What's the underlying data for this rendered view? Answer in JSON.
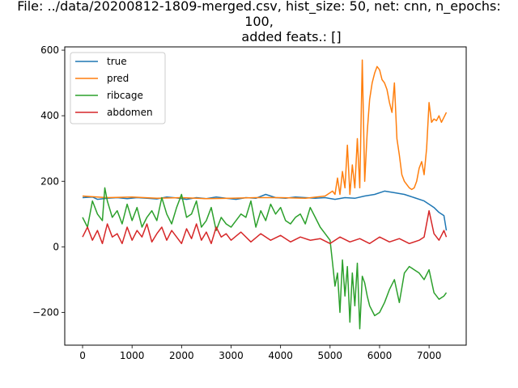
{
  "chart_data": {
    "type": "line",
    "title_lines": [
      "File: ../data/20200812-1809-merged.csv, hist_size: 50, net: cnn, n_epochs:",
      "100,",
      "added feats.: []"
    ],
    "xlabel": "",
    "ylabel": "",
    "xlim": [
      -360,
      7750
    ],
    "ylim": [
      -300,
      610
    ],
    "xticks": [
      0,
      1000,
      2000,
      3000,
      4000,
      5000,
      6000,
      7000
    ],
    "yticks": [
      -200,
      0,
      200,
      400,
      600
    ],
    "ytick_labels": [
      "−200",
      "0",
      "200",
      "400",
      "600"
    ],
    "legend_position": "upper-left",
    "grid": false,
    "series": [
      {
        "name": "true",
        "color": "#1f77b4",
        "x": [
          0,
          200,
          300,
          500,
          700,
          900,
          1100,
          1300,
          1500,
          1700,
          1900,
          2100,
          2300,
          2500,
          2700,
          2900,
          3100,
          3300,
          3500,
          3700,
          3900,
          4100,
          4300,
          4500,
          4700,
          4900,
          5100,
          5300,
          5500,
          5700,
          5900,
          6100,
          6300,
          6500,
          6700,
          6900,
          7100,
          7200,
          7300,
          7350
        ],
        "values": [
          150,
          152,
          145,
          148,
          150,
          147,
          150,
          148,
          146,
          152,
          149,
          145,
          150,
          147,
          152,
          148,
          145,
          150,
          148,
          160,
          150,
          148,
          152,
          150,
          148,
          150,
          145,
          150,
          148,
          155,
          160,
          170,
          165,
          160,
          150,
          140,
          120,
          105,
          95,
          50
        ]
      },
      {
        "name": "pred",
        "color": "#ff7f0e",
        "x": [
          0,
          500,
          1000,
          1500,
          2000,
          2500,
          3000,
          3500,
          4000,
          4500,
          4900,
          5050,
          5100,
          5150,
          5200,
          5250,
          5300,
          5350,
          5400,
          5450,
          5500,
          5550,
          5600,
          5650,
          5700,
          5750,
          5800,
          5850,
          5900,
          5950,
          6000,
          6050,
          6100,
          6150,
          6200,
          6250,
          6300,
          6350,
          6400,
          6450,
          6500,
          6550,
          6600,
          6650,
          6700,
          6750,
          6800,
          6850,
          6900,
          6950,
          7000,
          7050,
          7100,
          7150,
          7200,
          7250,
          7300,
          7350
        ],
        "values": [
          155,
          150,
          152,
          148,
          150,
          147,
          148,
          150,
          150,
          148,
          155,
          170,
          160,
          210,
          160,
          230,
          180,
          310,
          160,
          250,
          180,
          330,
          180,
          570,
          200,
          350,
          450,
          500,
          530,
          550,
          540,
          510,
          500,
          480,
          440,
          410,
          500,
          330,
          280,
          220,
          200,
          190,
          180,
          175,
          180,
          200,
          240,
          260,
          220,
          300,
          440,
          380,
          390,
          385,
          400,
          380,
          395,
          410
        ]
      },
      {
        "name": "ribcage",
        "color": "#2ca02c",
        "x": [
          0,
          100,
          200,
          300,
          400,
          450,
          500,
          600,
          700,
          800,
          900,
          1000,
          1100,
          1200,
          1300,
          1400,
          1500,
          1600,
          1700,
          1800,
          1900,
          2000,
          2100,
          2200,
          2300,
          2400,
          2500,
          2600,
          2700,
          2800,
          2900,
          3000,
          3100,
          3200,
          3300,
          3400,
          3500,
          3600,
          3700,
          3800,
          3900,
          4000,
          4100,
          4200,
          4300,
          4400,
          4500,
          4600,
          4700,
          4800,
          4900,
          5000,
          5050,
          5100,
          5150,
          5200,
          5250,
          5300,
          5350,
          5400,
          5450,
          5500,
          5550,
          5600,
          5650,
          5700,
          5750,
          5800,
          5900,
          6000,
          6100,
          6200,
          6300,
          6400,
          6500,
          6600,
          6700,
          6800,
          6900,
          7000,
          7100,
          7200,
          7300,
          7350
        ],
        "values": [
          90,
          60,
          140,
          100,
          80,
          180,
          140,
          90,
          110,
          70,
          130,
          80,
          120,
          60,
          90,
          110,
          80,
          150,
          100,
          70,
          120,
          160,
          90,
          100,
          140,
          60,
          80,
          120,
          50,
          90,
          70,
          60,
          80,
          100,
          90,
          140,
          60,
          110,
          80,
          130,
          100,
          120,
          80,
          70,
          90,
          100,
          70,
          120,
          90,
          60,
          40,
          20,
          -50,
          -120,
          -80,
          -200,
          -40,
          -150,
          -60,
          -230,
          -80,
          -180,
          -50,
          -250,
          -90,
          -110,
          -150,
          -180,
          -210,
          -200,
          -170,
          -130,
          -100,
          -170,
          -80,
          -60,
          -70,
          -80,
          -100,
          -70,
          -140,
          -160,
          -150,
          -140
        ]
      },
      {
        "name": "abdomen",
        "color": "#d62728",
        "x": [
          0,
          100,
          200,
          300,
          400,
          500,
          600,
          700,
          800,
          900,
          1000,
          1100,
          1200,
          1300,
          1400,
          1500,
          1600,
          1700,
          1800,
          1900,
          2000,
          2100,
          2200,
          2300,
          2400,
          2500,
          2600,
          2700,
          2800,
          2900,
          3000,
          3200,
          3400,
          3600,
          3800,
          4000,
          4200,
          4400,
          4600,
          4800,
          5000,
          5200,
          5400,
          5600,
          5800,
          6000,
          6200,
          6400,
          6600,
          6800,
          6900,
          7000,
          7100,
          7200,
          7300,
          7350
        ],
        "values": [
          30,
          60,
          20,
          50,
          10,
          70,
          30,
          40,
          10,
          60,
          20,
          50,
          30,
          70,
          15,
          40,
          60,
          20,
          50,
          30,
          10,
          55,
          25,
          70,
          20,
          45,
          10,
          60,
          30,
          40,
          20,
          45,
          15,
          40,
          20,
          35,
          15,
          30,
          20,
          25,
          10,
          30,
          15,
          25,
          10,
          30,
          15,
          25,
          10,
          20,
          30,
          110,
          40,
          20,
          50,
          30
        ]
      }
    ]
  }
}
